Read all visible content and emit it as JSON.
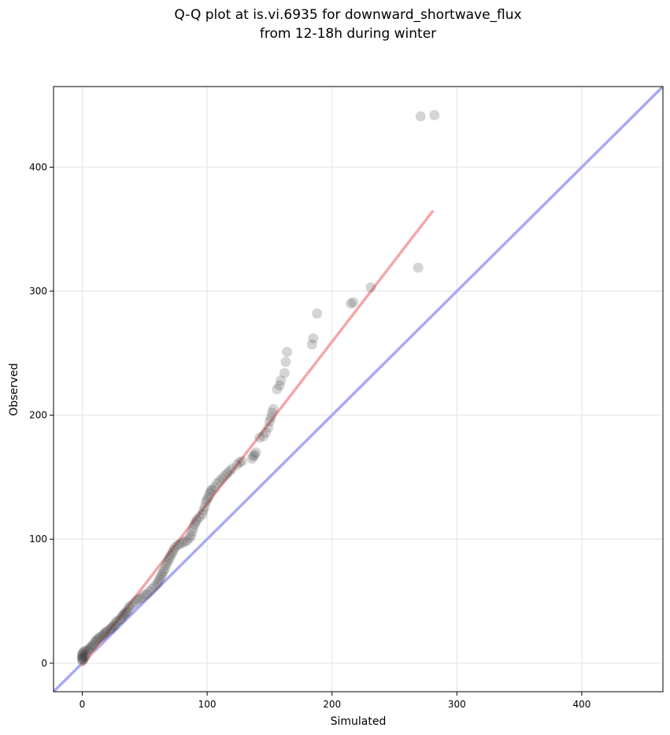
{
  "chart_data": {
    "type": "scatter",
    "title": "Q-Q plot at is.vi.6935 for downward_shortwave_flux",
    "subtitle": "from 12-18h during winter",
    "xlabel": "Simulated",
    "ylabel": "Observed",
    "xlim": [
      -23,
      465
    ],
    "ylim": [
      -23,
      465
    ],
    "xticks": [
      0,
      100,
      200,
      300,
      400
    ],
    "yticks": [
      0,
      100,
      200,
      300,
      400
    ],
    "grid": true,
    "legend": "none",
    "series": [
      {
        "color": "#404040",
        "points": [
          [
            0,
            2
          ],
          [
            0,
            3
          ],
          [
            0,
            4
          ],
          [
            0,
            5
          ],
          [
            0,
            6
          ],
          [
            0,
            7
          ],
          [
            0.5,
            8
          ],
          [
            1,
            3
          ],
          [
            1,
            9
          ],
          [
            2,
            5
          ],
          [
            2,
            10
          ],
          [
            3,
            7
          ],
          [
            4,
            10
          ],
          [
            5,
            11
          ],
          [
            6,
            12
          ],
          [
            7,
            13
          ],
          [
            8,
            14
          ],
          [
            9,
            15
          ],
          [
            10,
            17
          ],
          [
            11,
            18
          ],
          [
            12,
            19
          ],
          [
            13,
            20
          ],
          [
            14,
            21
          ],
          [
            16,
            22
          ],
          [
            17,
            23
          ],
          [
            18,
            24
          ],
          [
            19,
            25
          ],
          [
            20,
            26
          ],
          [
            22,
            27
          ],
          [
            23,
            28
          ],
          [
            24,
            29
          ],
          [
            25,
            30
          ],
          [
            26,
            31
          ],
          [
            27,
            33
          ],
          [
            28,
            34
          ],
          [
            30,
            35
          ],
          [
            31,
            36
          ],
          [
            32,
            38
          ],
          [
            33,
            39
          ],
          [
            34,
            40
          ],
          [
            35,
            41
          ],
          [
            36,
            42
          ],
          [
            37,
            44
          ],
          [
            38,
            46
          ],
          [
            40,
            47
          ],
          [
            42,
            49
          ],
          [
            44,
            51
          ],
          [
            46,
            52
          ],
          [
            48,
            53
          ],
          [
            50,
            55
          ],
          [
            52,
            56
          ],
          [
            54,
            58
          ],
          [
            56,
            60
          ],
          [
            58,
            62
          ],
          [
            60,
            64
          ],
          [
            61,
            66
          ],
          [
            62,
            68
          ],
          [
            63,
            70
          ],
          [
            64,
            72
          ],
          [
            65,
            74
          ],
          [
            66,
            76
          ],
          [
            67,
            79
          ],
          [
            68,
            81
          ],
          [
            69,
            83
          ],
          [
            70,
            85
          ],
          [
            71,
            87
          ],
          [
            72,
            89
          ],
          [
            73,
            91
          ],
          [
            74,
            93
          ],
          [
            76,
            95
          ],
          [
            78,
            96
          ],
          [
            80,
            97
          ],
          [
            82,
            98
          ],
          [
            84,
            99
          ],
          [
            86,
            101
          ],
          [
            87,
            103
          ],
          [
            88,
            106
          ],
          [
            89,
            109
          ],
          [
            90,
            112
          ],
          [
            91,
            114
          ],
          [
            92,
            116
          ],
          [
            94,
            118
          ],
          [
            96,
            120
          ],
          [
            97,
            123
          ],
          [
            98,
            126
          ],
          [
            99,
            130
          ],
          [
            100,
            132
          ],
          [
            101,
            134
          ],
          [
            102,
            137
          ],
          [
            103,
            139
          ],
          [
            104,
            140
          ],
          [
            106,
            142
          ],
          [
            108,
            145
          ],
          [
            110,
            147
          ],
          [
            112,
            149
          ],
          [
            114,
            151
          ],
          [
            116,
            153
          ],
          [
            118,
            155
          ],
          [
            120,
            157
          ],
          [
            124,
            160
          ],
          [
            126,
            162
          ],
          [
            128,
            163
          ],
          [
            136,
            165
          ],
          [
            137,
            167
          ],
          [
            138,
            168
          ],
          [
            139,
            170
          ],
          [
            142,
            182
          ],
          [
            145,
            183
          ],
          [
            147,
            186
          ],
          [
            149,
            190
          ],
          [
            150,
            195
          ],
          [
            151,
            198
          ],
          [
            152,
            202
          ],
          [
            153,
            205
          ],
          [
            156,
            221
          ],
          [
            158,
            224
          ],
          [
            159,
            228
          ],
          [
            162,
            234
          ],
          [
            163,
            243
          ],
          [
            164,
            251
          ],
          [
            184,
            257
          ],
          [
            185,
            262
          ],
          [
            188,
            282
          ],
          [
            215,
            290
          ],
          [
            217,
            291
          ],
          [
            231,
            303
          ],
          [
            269,
            319
          ],
          [
            271,
            441
          ],
          [
            282,
            442
          ]
        ]
      }
    ],
    "fit_line": {
      "color": "#f4a7a7",
      "points": [
        [
          0,
          -2
        ],
        [
          281,
          365
        ]
      ]
    },
    "identity_line": {
      "color": "#a9a9f5",
      "points": [
        [
          -23,
          -23
        ],
        [
          465,
          465
        ]
      ]
    }
  }
}
